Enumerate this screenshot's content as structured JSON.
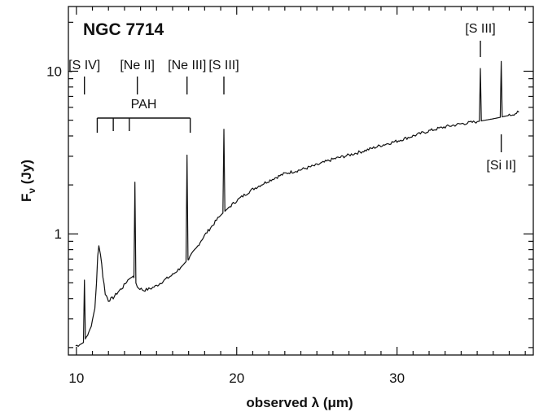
{
  "chart_data": {
    "type": "line",
    "title": "NGC 7714",
    "xlabel": "observed λ (μm)",
    "ylabel": "Fν (Jy)",
    "xscale": "linear",
    "yscale": "log",
    "xlim": [
      9.5,
      38.5
    ],
    "ylim": [
      0.18,
      25
    ],
    "grid": false,
    "legend": "none",
    "line_color": "#111111",
    "xticks": [
      {
        "value": 10,
        "label": "10"
      },
      {
        "value": 20,
        "label": "20"
      },
      {
        "value": 30,
        "label": "30"
      }
    ],
    "yticks": [
      {
        "value": 1,
        "label": "1"
      },
      {
        "value": 10,
        "label": "10"
      }
    ],
    "continuum": [
      [
        9.95,
        0.205
      ],
      [
        10.2,
        0.208
      ],
      [
        10.45,
        0.215
      ],
      [
        10.7,
        0.24
      ],
      [
        10.85,
        0.26
      ],
      [
        11.0,
        0.29
      ],
      [
        11.15,
        0.35
      ],
      [
        11.25,
        0.5
      ],
      [
        11.33,
        0.72
      ],
      [
        11.4,
        0.84
      ],
      [
        11.5,
        0.76
      ],
      [
        11.65,
        0.55
      ],
      [
        11.8,
        0.43
      ],
      [
        12.0,
        0.39
      ],
      [
        12.3,
        0.405
      ],
      [
        12.6,
        0.44
      ],
      [
        12.9,
        0.47
      ],
      [
        13.2,
        0.52
      ],
      [
        13.55,
        0.55
      ],
      [
        13.8,
        0.47
      ],
      [
        14.2,
        0.45
      ],
      [
        14.6,
        0.46
      ],
      [
        15.0,
        0.48
      ],
      [
        15.5,
        0.52
      ],
      [
        16.0,
        0.56
      ],
      [
        16.5,
        0.62
      ],
      [
        17.0,
        0.7
      ],
      [
        17.5,
        0.82
      ],
      [
        18.0,
        0.98
      ],
      [
        18.5,
        1.13
      ],
      [
        18.9,
        1.27
      ],
      [
        19.5,
        1.45
      ],
      [
        20.0,
        1.6
      ],
      [
        21.0,
        1.88
      ],
      [
        22.0,
        2.12
      ],
      [
        23.0,
        2.35
      ],
      [
        24.0,
        2.48
      ],
      [
        25.0,
        2.65
      ],
      [
        26.0,
        2.88
      ],
      [
        27.0,
        3.05
      ],
      [
        28.0,
        3.25
      ],
      [
        29.0,
        3.5
      ],
      [
        30.0,
        3.72
      ],
      [
        31.0,
        4.0
      ],
      [
        32.0,
        4.3
      ],
      [
        33.0,
        4.55
      ],
      [
        34.0,
        4.75
      ],
      [
        35.0,
        4.9
      ],
      [
        36.0,
        5.1
      ],
      [
        37.0,
        5.35
      ],
      [
        37.6,
        5.6
      ]
    ],
    "emission_peaks": [
      {
        "x": 10.5,
        "y": 0.52
      },
      {
        "x": 13.65,
        "y": 2.08
      },
      {
        "x": 16.9,
        "y": 3.05
      },
      {
        "x": 19.2,
        "y": 4.4
      },
      {
        "x": 35.2,
        "y": 10.4
      },
      {
        "x": 36.5,
        "y": 11.5
      }
    ],
    "line_markers": [
      {
        "label": "[S IV]",
        "x": 10.5
      },
      {
        "label": "[Ne II]",
        "x": 13.8
      },
      {
        "label": "[Ne III]",
        "x": 16.9
      },
      {
        "label": "[S III]",
        "x": 19.2
      }
    ],
    "top_right_marker": {
      "label": "[S III]",
      "x": 35.2
    },
    "bottom_right_marker": {
      "label": "[Si II]",
      "x": 36.5
    },
    "pah": {
      "label": "PAH",
      "features": [
        11.3,
        12.3,
        13.3,
        17.1
      ]
    }
  }
}
